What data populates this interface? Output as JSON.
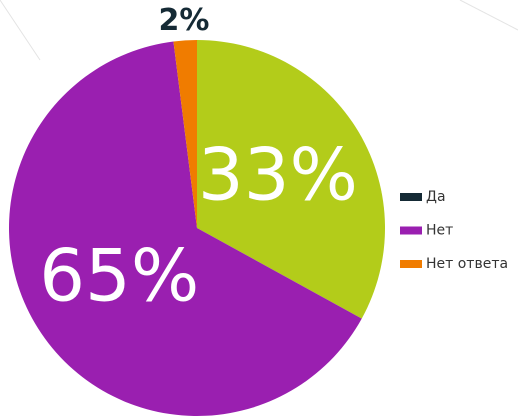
{
  "chart_data": {
    "type": "pie",
    "categories": [
      "Да",
      "Нет",
      "Нет ответа"
    ],
    "slices": [
      "Нет ответа",
      "Да",
      "Нет"
    ],
    "values": [
      33,
      65,
      2
    ],
    "value_labels": [
      "33%",
      "65%",
      "2%"
    ],
    "colors": [
      "#b3cc1a",
      "#9a1fb0",
      "#f07c00"
    ],
    "legend_colors": [
      "#152a35",
      "#9a1fb0",
      "#f07c00"
    ],
    "legend": "right"
  }
}
